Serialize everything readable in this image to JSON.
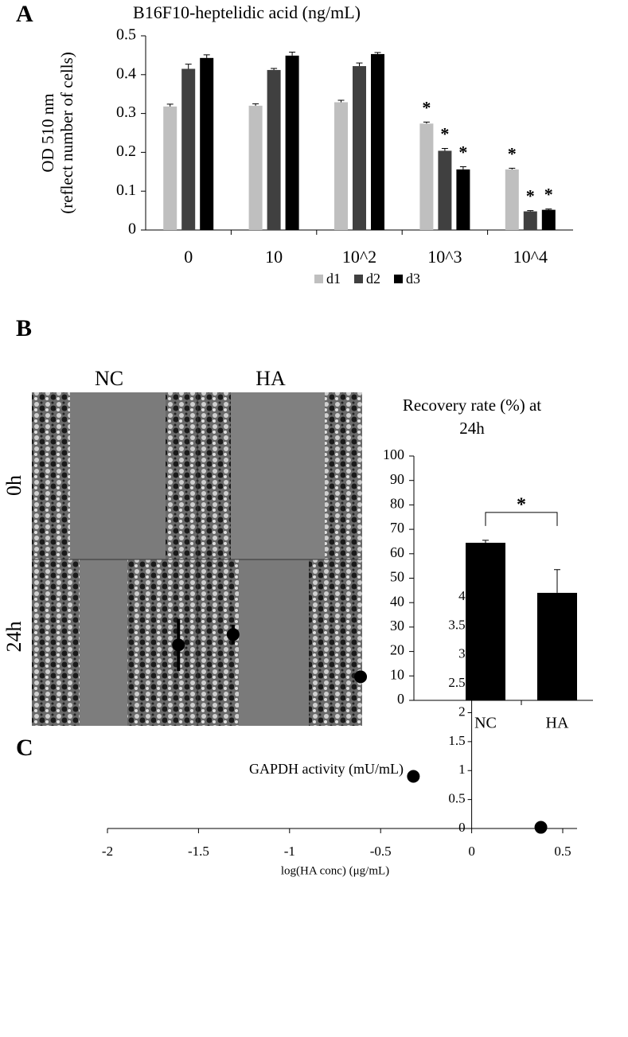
{
  "panels": [
    "A",
    "B",
    "C"
  ],
  "image": {
    "columns": [
      "NC",
      "HA"
    ],
    "rows": [
      "0h",
      "24h"
    ]
  },
  "chart_data": [
    {
      "type": "bar",
      "title": "B16F10-heptelidic acid  (ng/mL)",
      "y_label": [
        "OD 510 nm",
        "(reflect  number of cells)"
      ],
      "categories": [
        "0",
        "10",
        "10^2",
        "10^3",
        "10^4"
      ],
      "series": [
        {
          "name": "d1",
          "color": "#bfbfbf",
          "values": [
            0.318,
            0.32,
            0.329,
            0.274,
            0.156
          ],
          "errors": [
            0.006,
            0.005,
            0.005,
            0.004,
            0.003
          ]
        },
        {
          "name": "d2",
          "color": "#404040",
          "values": [
            0.415,
            0.412,
            0.422,
            0.204,
            0.048
          ],
          "errors": [
            0.012,
            0.004,
            0.008,
            0.006,
            0.002
          ]
        },
        {
          "name": "d3",
          "color": "#000000",
          "values": [
            0.443,
            0.449,
            0.453,
            0.156,
            0.052
          ],
          "errors": [
            0.008,
            0.009,
            0.004,
            0.007,
            0.002
          ]
        }
      ],
      "ylim": [
        0,
        0.5
      ],
      "yticks": [
        0,
        0.1,
        0.2,
        0.3,
        0.4,
        0.5
      ],
      "legend": "bottom",
      "annotations": [
        {
          "text": "*",
          "series": "d1",
          "category": "10^3"
        },
        {
          "text": "*",
          "series": "d2",
          "category": "10^3"
        },
        {
          "text": "*",
          "series": "d3",
          "category": "10^3"
        },
        {
          "text": "*",
          "series": "d1",
          "category": "10^4"
        },
        {
          "text": "*",
          "series": "d2",
          "category": "10^4"
        },
        {
          "text": "*",
          "series": "d3",
          "category": "10^4"
        }
      ]
    },
    {
      "type": "bar",
      "title": [
        "Recovery rate (%) at",
        "24h"
      ],
      "categories": [
        "NC",
        "HA"
      ],
      "series": [
        {
          "name": "Recovery rate",
          "color": "#000000",
          "values": [
            64.5,
            44
          ],
          "errors": [
            1,
            9.5
          ]
        }
      ],
      "ylim": [
        0,
        100
      ],
      "yticks": [
        0,
        10,
        20,
        30,
        40,
        50,
        60,
        70,
        80,
        90,
        100
      ],
      "annotations": [
        {
          "text": "*",
          "between": [
            "NC",
            "HA"
          ]
        }
      ]
    },
    {
      "type": "scatter",
      "title": "GAPDH activity (mU/mL)",
      "x_label": "log(HA conc) (μg/mL)",
      "color": "#000000",
      "x": [
        -1.61,
        -1.31,
        -0.61,
        -0.32,
        0.38
      ],
      "values": [
        3.17,
        3.35,
        2.62,
        0.9,
        0.02
      ],
      "errors": [
        0.45,
        0.17,
        0.03,
        0.05,
        0.02
      ],
      "xlim": [
        -2,
        0.5
      ],
      "xticks": [
        -2,
        -1.5,
        -1,
        -0.5,
        0,
        0.5
      ],
      "ylim": [
        0,
        4
      ],
      "yticks": [
        0,
        0.5,
        1,
        1.5,
        2,
        2.5,
        3,
        3.5,
        4
      ]
    }
  ]
}
